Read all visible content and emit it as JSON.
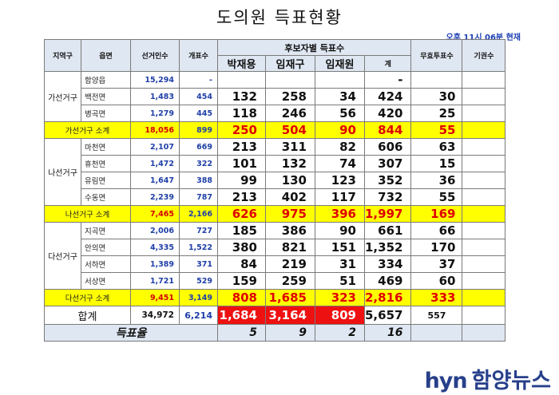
{
  "title": "도의원 득표현황",
  "timestamp": "오후 11시 06분 현재",
  "headers": {
    "region": "지역구",
    "town": "읍면",
    "voters": "선거인수",
    "opened": "개표수",
    "candidate_group": "후보자별 득표수",
    "candidates": [
      "박재용",
      "임재구",
      "임재원"
    ],
    "total": "계",
    "invalid": "무효투표수",
    "abstain": "기권수"
  },
  "districts": [
    {
      "name": "가선거구",
      "rows": [
        {
          "town": "함양읍",
          "voters": "15,294",
          "opened": "-",
          "c1": "",
          "c2": "",
          "c3": "",
          "total": "-",
          "invalid": "",
          "abstain": ""
        },
        {
          "town": "백전면",
          "voters": "1,483",
          "opened": "454",
          "c1": "132",
          "c2": "258",
          "c3": "34",
          "total": "424",
          "invalid": "30",
          "abstain": ""
        },
        {
          "town": "병곡면",
          "voters": "1,279",
          "opened": "445",
          "c1": "118",
          "c2": "246",
          "c3": "56",
          "total": "420",
          "invalid": "25",
          "abstain": ""
        }
      ],
      "subtotal": {
        "label": "가선거구 소계",
        "voters": "18,056",
        "opened": "899",
        "c1": "250",
        "c2": "504",
        "c3": "90",
        "total": "844",
        "invalid": "55",
        "abstain": ""
      }
    },
    {
      "name": "나선거구",
      "rows": [
        {
          "town": "마천면",
          "voters": "2,107",
          "opened": "669",
          "c1": "213",
          "c2": "311",
          "c3": "82",
          "total": "606",
          "invalid": "63",
          "abstain": ""
        },
        {
          "town": "휴천면",
          "voters": "1,472",
          "opened": "322",
          "c1": "101",
          "c2": "132",
          "c3": "74",
          "total": "307",
          "invalid": "15",
          "abstain": ""
        },
        {
          "town": "유림면",
          "voters": "1,647",
          "opened": "388",
          "c1": "99",
          "c2": "130",
          "c3": "123",
          "total": "352",
          "invalid": "36",
          "abstain": ""
        },
        {
          "town": "수동면",
          "voters": "2,239",
          "opened": "787",
          "c1": "213",
          "c2": "402",
          "c3": "117",
          "total": "732",
          "invalid": "55",
          "abstain": ""
        }
      ],
      "subtotal": {
        "label": "나선거구 소계",
        "voters": "7,465",
        "opened": "2,166",
        "c1": "626",
        "c2": "975",
        "c3": "396",
        "total": "1,997",
        "invalid": "169",
        "abstain": ""
      }
    },
    {
      "name": "다선거구",
      "rows": [
        {
          "town": "지곡면",
          "voters": "2,006",
          "opened": "727",
          "c1": "185",
          "c2": "386",
          "c3": "90",
          "total": "661",
          "invalid": "66",
          "abstain": ""
        },
        {
          "town": "안의면",
          "voters": "4,335",
          "opened": "1,522",
          "c1": "380",
          "c2": "821",
          "c3": "151",
          "total": "1,352",
          "invalid": "170",
          "abstain": ""
        },
        {
          "town": "서하면",
          "voters": "1,389",
          "opened": "371",
          "c1": "84",
          "c2": "219",
          "c3": "31",
          "total": "334",
          "invalid": "37",
          "abstain": ""
        },
        {
          "town": "서상면",
          "voters": "1,721",
          "opened": "529",
          "c1": "159",
          "c2": "259",
          "c3": "51",
          "total": "469",
          "invalid": "60",
          "abstain": ""
        }
      ],
      "subtotal": {
        "label": "다선거구 소계",
        "voters": "9,451",
        "opened": "3,149",
        "c1": "808",
        "c2": "1,685",
        "c3": "323",
        "total": "2,816",
        "invalid": "333",
        "abstain": ""
      }
    }
  ],
  "grand_total": {
    "label": "합계",
    "voters": "34,972",
    "opened": "6,214",
    "c1": "1,684",
    "c2": "3,164",
    "c3": "809",
    "total": "5,657",
    "invalid": "557",
    "abstain": ""
  },
  "vote_rate": {
    "label": "득표율",
    "c1": "5",
    "c2": "9",
    "c3": "2",
    "total": "16"
  },
  "logo": {
    "latin": "hyn",
    "korean": "함양뉴스"
  },
  "colors": {
    "header_bg": "#dfe7f2",
    "subtotal_bg": "#ffff00",
    "highlight_red": "#ee1111",
    "blue_text": "#1f3fa8",
    "logo": "#27408b"
  }
}
